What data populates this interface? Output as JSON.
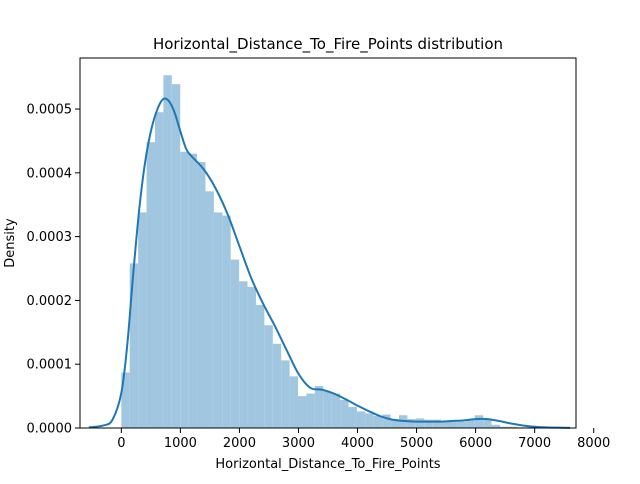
{
  "chart_data": {
    "type": "bar",
    "title": "Horizontal_Distance_To_Fire_Points distribution",
    "xlabel": "Horizontal_Distance_To_Fire_Points",
    "ylabel": "Density",
    "xlim": [
      -700,
      7700
    ],
    "ylim": [
      0,
      0.00058
    ],
    "xticks": [
      0,
      1000,
      2000,
      3000,
      4000,
      5000,
      6000,
      7000,
      8000
    ],
    "xtick_labels": [
      "0",
      "1000",
      "2000",
      "3000",
      "4000",
      "5000",
      "6000",
      "7000",
      "8000"
    ],
    "yticks": [
      0,
      0.0001,
      0.0002,
      0.0003,
      0.0004,
      0.0005
    ],
    "ytick_labels": [
      "0.0000",
      "0.0001",
      "0.0002",
      "0.0003",
      "0.0004",
      "0.0005"
    ],
    "grid": false,
    "colors": {
      "bar": "#a1c6e0",
      "kde": "#1f77b4"
    },
    "histogram": {
      "bin_start": 0,
      "bin_width": 142.5,
      "values": [
        8.7e-05,
        0.000258,
        0.000338,
        0.000448,
        0.000495,
        0.000553,
        0.000539,
        0.000433,
        0.00043,
        0.000417,
        0.000371,
        0.000338,
        0.000333,
        0.000264,
        0.00023,
        0.000221,
        0.000193,
        0.000161,
        0.000132,
        0.000106,
        8.1e-05,
        5e-05,
        5.4e-05,
        6.6e-05,
        5.7e-05,
        5.4e-05,
        4.4e-05,
        3.3e-05,
        2.6e-05,
        2.3e-05,
        1.9e-05,
        2.1e-05,
        1.4e-05,
        2e-05,
        1.4e-05,
        1.5e-05,
        1.3e-05,
        1.3e-05,
        1e-05,
        1e-05,
        1e-05,
        1.2e-05,
        2e-05,
        1.5e-05,
        5e-06,
        2e-06,
        2e-06,
        1e-06,
        1e-06,
        1e-06
      ]
    },
    "kde": {
      "x": [
        -550,
        -300,
        -150,
        0,
        100,
        200,
        300,
        400,
        500,
        600,
        700,
        800,
        900,
        1000,
        1100,
        1200,
        1400,
        1600,
        1800,
        2000,
        2200,
        2400,
        2600,
        2800,
        3000,
        3200,
        3400,
        3600,
        3800,
        4000,
        4200,
        4400,
        4600,
        4800,
        5000,
        5200,
        5400,
        5600,
        5800,
        6000,
        6200,
        6400,
        6600,
        6800,
        7000,
        7200,
        7400,
        7600
      ],
      "y": [
        1e-06,
        4e-06,
        1.3e-05,
        5.5e-05,
        0.00013,
        0.00024,
        0.00034,
        0.000415,
        0.000465,
        0.000497,
        0.000515,
        0.000513,
        0.000495,
        0.000465,
        0.000437,
        0.000425,
        0.000405,
        0.000375,
        0.000335,
        0.000285,
        0.000235,
        0.000195,
        0.00016,
        0.000122,
        8.5e-05,
        6.3e-05,
        6e-05,
        5.4e-05,
        4.5e-05,
        3.5e-05,
        2.6e-05,
        1.8e-05,
        1.3e-05,
        1.1e-05,
        1e-05,
        1e-05,
        1e-05,
        1.1e-05,
        1.2e-05,
        1.4e-05,
        1.4e-05,
        1.1e-05,
        7e-06,
        4e-06,
        2e-06,
        1e-06,
        5e-07,
        2e-07
      ]
    }
  }
}
